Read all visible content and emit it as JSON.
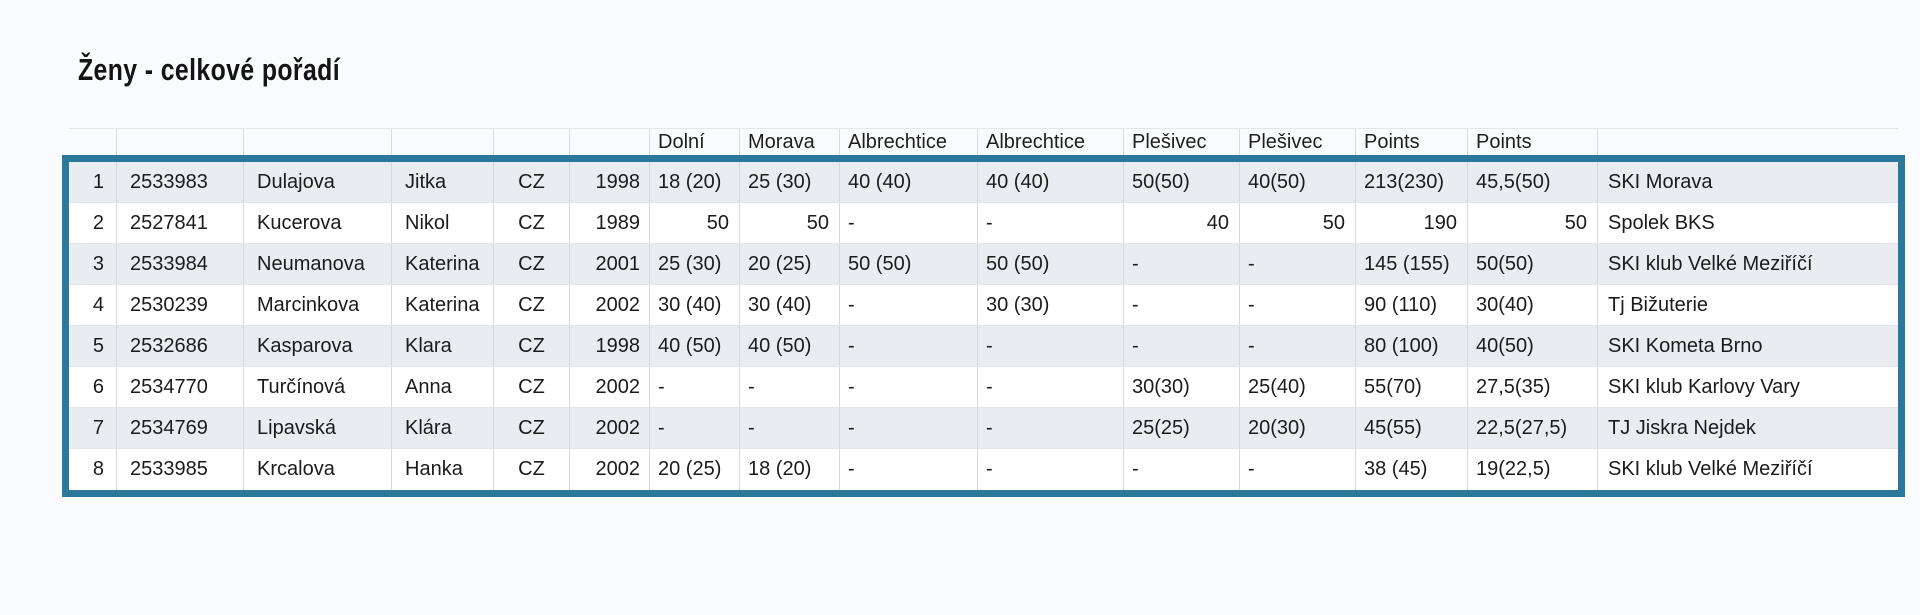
{
  "page": {
    "title": "Ženy - celkové pořadí"
  },
  "colors": {
    "accent_border": "#2c789a",
    "row_stripe": "#e9edf2",
    "gridline": "#d3d9df",
    "background": "#fafbfe",
    "text": "#1b1b1b"
  },
  "table": {
    "headers": [
      "",
      "",
      "",
      "",
      "",
      "",
      "Dolní",
      "Morava",
      "Albrechtice",
      "Albrechtice",
      "Plešivec",
      "Plešivec",
      "Points",
      "Points",
      ""
    ],
    "rows": [
      {
        "numeric": false,
        "cells": [
          "1",
          "2533983",
          "Dulajova",
          "Jitka",
          "CZ",
          "1998",
          "18 (20)",
          "25 (30)",
          "40 (40)",
          "40 (40)",
          "50(50)",
          "40(50)",
          "213(230)",
          "45,5(50)",
          "SKI Morava"
        ]
      },
      {
        "numeric": true,
        "cells": [
          "2",
          "2527841",
          "Kucerova",
          "Nikol",
          "CZ",
          "1989",
          "50",
          "50",
          "-",
          "-",
          "40",
          "50",
          "190",
          "50",
          "Spolek BKS"
        ]
      },
      {
        "numeric": false,
        "cells": [
          "3",
          "2533984",
          "Neumanova",
          "Katerina",
          "CZ",
          "2001",
          "25 (30)",
          "20 (25)",
          "50 (50)",
          "50 (50)",
          "-",
          "-",
          "145 (155)",
          "50(50)",
          "SKI klub Velké Meziříčí"
        ]
      },
      {
        "numeric": false,
        "cells": [
          "4",
          "2530239",
          "Marcinkova",
          "Katerina",
          "CZ",
          "2002",
          "30 (40)",
          "30 (40)",
          "-",
          "30 (30)",
          "-",
          "-",
          "90 (110)",
          "30(40)",
          "Tj Bižuterie"
        ]
      },
      {
        "numeric": false,
        "cells": [
          "5",
          "2532686",
          "Kasparova",
          "Klara",
          "CZ",
          "1998",
          "40 (50)",
          "40 (50)",
          "-",
          "-",
          "-",
          "-",
          "80 (100)",
          "40(50)",
          "SKI Kometa Brno"
        ]
      },
      {
        "numeric": false,
        "cells": [
          "6",
          "2534770",
          "Turčínová",
          "Anna",
          "CZ",
          "2002",
          "-",
          "-",
          "-",
          "-",
          "30(30)",
          "25(40)",
          "55(70)",
          "27,5(35)",
          "SKI klub Karlovy Vary"
        ]
      },
      {
        "numeric": false,
        "cells": [
          "7",
          "2534769",
          "Lipavská",
          "Klára",
          "CZ",
          "2002",
          "-",
          "-",
          "-",
          "-",
          "25(25)",
          "20(30)",
          "45(55)",
          "22,5(27,5)",
          "TJ Jiskra Nejdek"
        ]
      },
      {
        "numeric": false,
        "cells": [
          "8",
          "2533985",
          "Krcalova",
          "Hanka",
          "CZ",
          "2002",
          "20 (25)",
          "18 (20)",
          "-",
          "-",
          "-",
          "-",
          "38 (45)",
          "19(22,5)",
          "SKI klub Velké Meziříčí"
        ]
      }
    ]
  }
}
